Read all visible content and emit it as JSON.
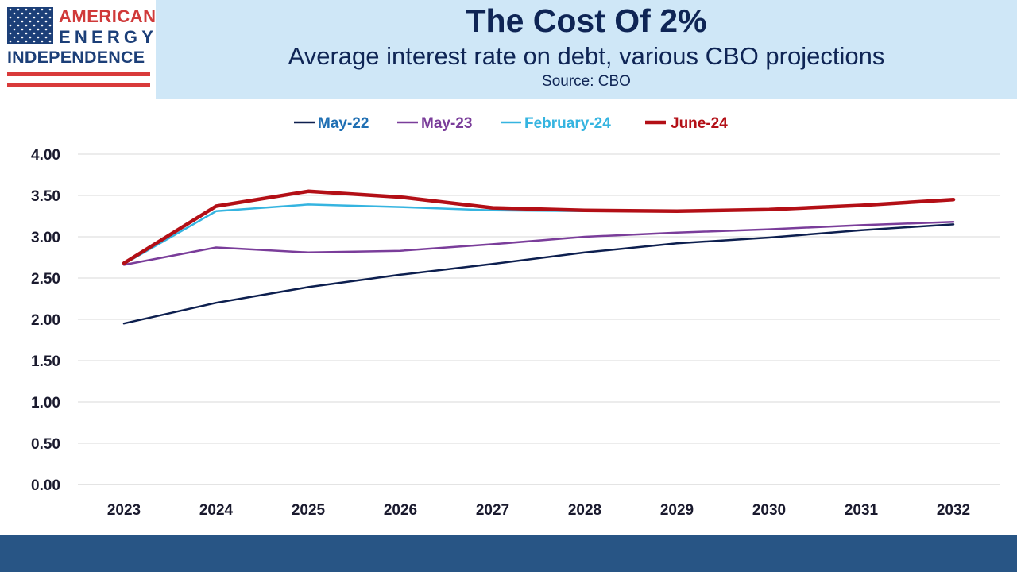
{
  "logo": {
    "line1": "AMERICAN",
    "line2": "ENERGY",
    "line3": "INDEPENDENCE",
    "colors": {
      "red": "#d03a3a",
      "blue": "#1c3f78"
    }
  },
  "header": {
    "title": "The Cost Of 2%",
    "subtitle": "Average interest rate on debt, various CBO projections",
    "source": "Source: CBO"
  },
  "chart_data": {
    "type": "line",
    "title": "The Cost Of 2%",
    "subtitle": "Average interest rate on debt, various CBO projections",
    "xlabel": "",
    "ylabel": "",
    "categories": [
      "2023",
      "2024",
      "2025",
      "2026",
      "2027",
      "2028",
      "2029",
      "2030",
      "2031",
      "2032"
    ],
    "y_ticks": [
      "0.00",
      "0.50",
      "1.00",
      "1.50",
      "2.00",
      "2.50",
      "3.00",
      "3.50",
      "4.00"
    ],
    "ylim": [
      0,
      4
    ],
    "grid": "horizontal",
    "legend_position": "top",
    "series": [
      {
        "name": "May-22",
        "color": "#0d1f4f",
        "legend_text_color": "#1f6fb3",
        "width": 2.5,
        "values": [
          1.95,
          2.2,
          2.39,
          2.54,
          2.67,
          2.81,
          2.92,
          2.99,
          3.08,
          3.15
        ]
      },
      {
        "name": "May-23",
        "color": "#7a3d9a",
        "legend_text_color": "#7a3d9a",
        "width": 2.5,
        "values": [
          2.66,
          2.87,
          2.81,
          2.83,
          2.91,
          3.0,
          3.05,
          3.09,
          3.14,
          3.18
        ]
      },
      {
        "name": "February-24",
        "color": "#35b4e0",
        "legend_text_color": "#35b4e0",
        "width": 2.5,
        "values": [
          2.67,
          3.31,
          3.39,
          3.36,
          3.32,
          3.31,
          3.31,
          3.33,
          3.38,
          3.45
        ]
      },
      {
        "name": "June-24",
        "color": "#b30f16",
        "legend_text_color": "#b30f16",
        "width": 4.5,
        "values": [
          2.68,
          3.37,
          3.55,
          3.48,
          3.35,
          3.32,
          3.31,
          3.33,
          3.38,
          3.45
        ]
      }
    ]
  }
}
